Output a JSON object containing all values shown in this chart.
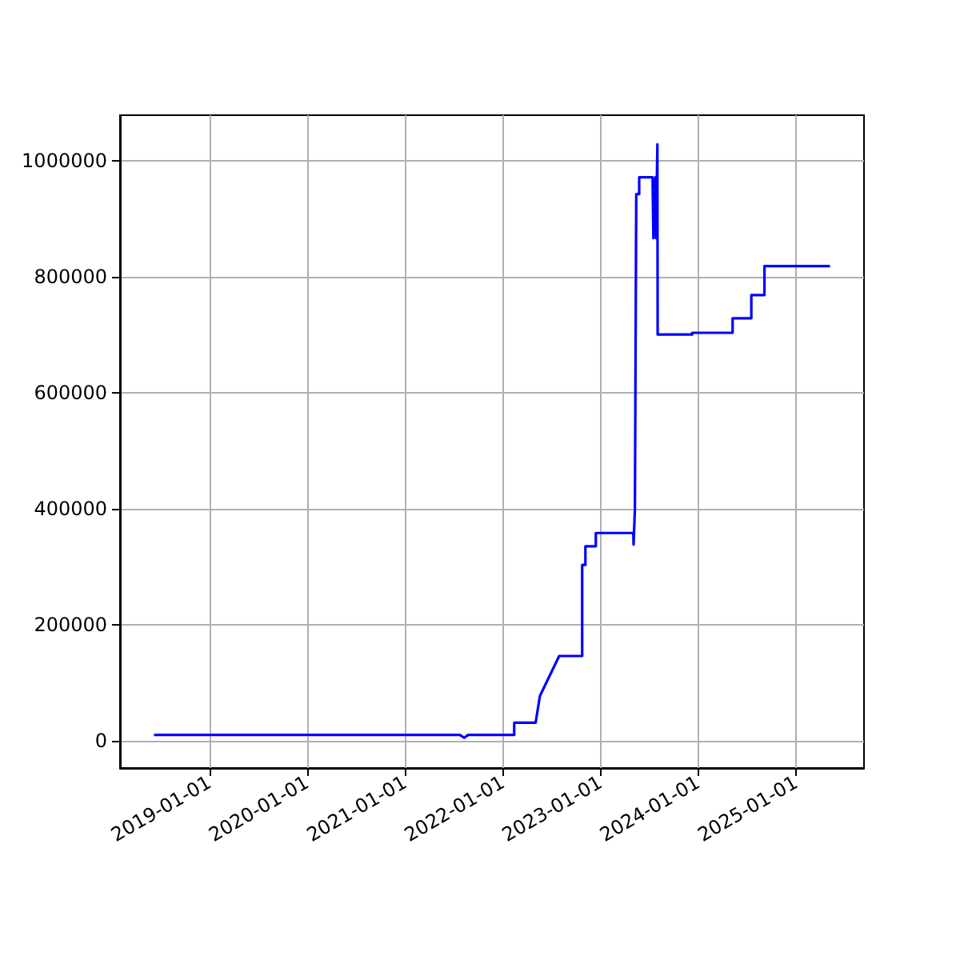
{
  "chart_data": {
    "type": "line",
    "grid": true,
    "marker": "none",
    "line_style": "solid",
    "xlim": [
      "2018-02-01",
      "2025-09-12"
    ],
    "ylim": [
      -47000,
      1078000
    ],
    "xticks": [
      "2019-01-01",
      "2020-01-01",
      "2021-01-01",
      "2022-01-01",
      "2023-01-01",
      "2024-01-01",
      "2025-01-01"
    ],
    "yticks": [
      0,
      200000,
      400000,
      600000,
      800000,
      1000000
    ],
    "series": [
      {
        "color": "#0000ff",
        "x": [
          "2018-06-08",
          "2021-07-25",
          "2021-08-10",
          "2021-08-25",
          "2022-02-13",
          "2022-02-13",
          "2022-05-04",
          "2022-05-20",
          "2022-07-31",
          "2022-10-25",
          "2022-10-25",
          "2022-11-06",
          "2022-11-06",
          "2022-12-15",
          "2022-12-15",
          "2023-05-04",
          "2023-05-05",
          "2023-05-10",
          "2023-05-15",
          "2023-05-26",
          "2023-05-26",
          "2023-07-15",
          "2023-07-18",
          "2023-07-25",
          "2023-07-28",
          "2023-08-02",
          "2023-08-03",
          "2023-12-10",
          "2023-12-10",
          "2024-05-09",
          "2024-05-09",
          "2024-07-18",
          "2024-07-18",
          "2024-09-05",
          "2024-09-05",
          "2025-05-08"
        ],
        "values": [
          10000,
          10000,
          5000,
          10000,
          10000,
          31000,
          31000,
          77000,
          146000,
          146000,
          303000,
          303000,
          335000,
          335000,
          358000,
          358000,
          338000,
          400000,
          942000,
          942000,
          971000,
          971000,
          866000,
          971000,
          866000,
          1028000,
          700000,
          700000,
          703000,
          703000,
          728000,
          728000,
          768000,
          768000,
          818000,
          818000
        ]
      }
    ]
  }
}
